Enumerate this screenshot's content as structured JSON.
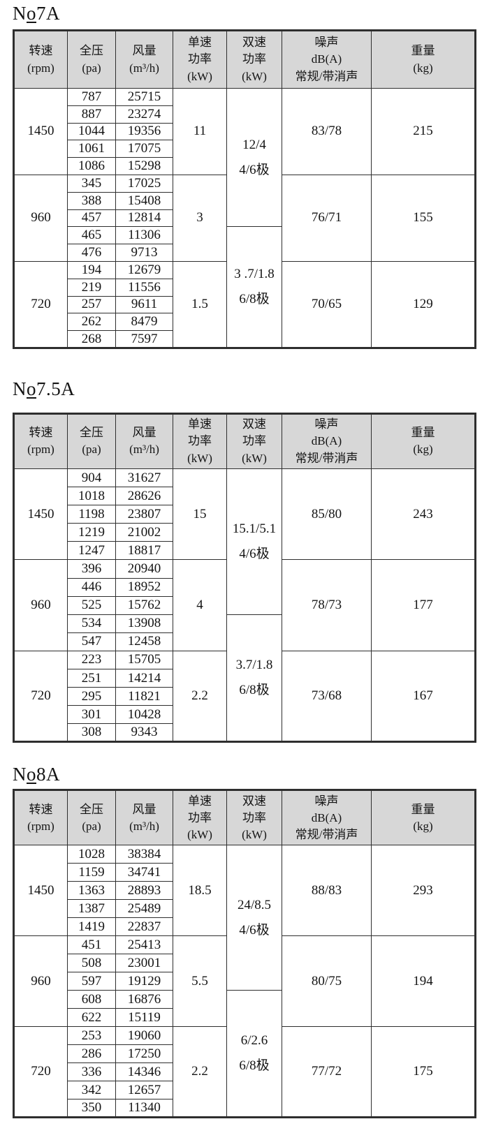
{
  "colors": {
    "page_bg": "#ffffff",
    "header_bg": "#d7d7d7",
    "band_bg": "#d7d7d7",
    "border": "#2e2e2e",
    "text": "#141414"
  },
  "header": {
    "columns": [
      {
        "name": "rpm",
        "lines": [
          "转速",
          "(rpm)"
        ]
      },
      {
        "name": "pressure",
        "lines": [
          "全压",
          "(pa)"
        ]
      },
      {
        "name": "airflow",
        "lines": [
          "风量",
          "(m³/h)"
        ]
      },
      {
        "name": "single-power",
        "lines": [
          "单速",
          "功率",
          "(kW)"
        ]
      },
      {
        "name": "dual-power",
        "lines": [
          "双速",
          "功率",
          "(kW)"
        ]
      },
      {
        "name": "noise",
        "lines": [
          "噪声",
          "dB(A)",
          "常规/带消声"
        ]
      },
      {
        "name": "weight",
        "lines": [
          "重量",
          "(kg)"
        ]
      }
    ]
  },
  "tables": [
    {
      "id": "no7a",
      "title_n": "N",
      "title_o": "o",
      "title_size": "7A",
      "dual_cells": [
        {
          "start": 0,
          "rowspan": 8,
          "lines": [
            "12/4",
            "4/6极"
          ]
        },
        {
          "start": 8,
          "rowspan": 7,
          "lines": [
            "3 .7/1.8",
            "6/8极"
          ]
        }
      ],
      "groups": [
        {
          "rpm": "1450",
          "shaded": false,
          "single_kw": "11",
          "noise": "83/78",
          "weight": "215",
          "rows": [
            [
              "787",
              "25715"
            ],
            [
              "887",
              "23274"
            ],
            [
              "1044",
              "19356"
            ],
            [
              "1061",
              "17075"
            ],
            [
              "1086",
              "15298"
            ]
          ]
        },
        {
          "rpm": "960",
          "shaded": true,
          "single_kw": "3",
          "noise": "76/71",
          "weight": "155",
          "rows": [
            [
              "345",
              "17025"
            ],
            [
              "388",
              "15408"
            ],
            [
              "457",
              "12814"
            ],
            [
              "465",
              "11306"
            ],
            [
              "476",
              "9713"
            ]
          ]
        },
        {
          "rpm": "720",
          "shaded": false,
          "single_kw": "1.5",
          "noise": "70/65",
          "weight": "129",
          "rows": [
            [
              "194",
              "12679"
            ],
            [
              "219",
              "11556"
            ],
            [
              "257",
              "9611"
            ],
            [
              "262",
              "8479"
            ],
            [
              "268",
              "7597"
            ]
          ]
        }
      ]
    },
    {
      "id": "no7.5a",
      "title_n": "N",
      "title_o": "o",
      "title_size": "7.5A",
      "dual_cells": [
        {
          "start": 0,
          "rowspan": 8,
          "lines": [
            "15.1/5.1",
            "4/6极"
          ]
        },
        {
          "start": 8,
          "rowspan": 7,
          "lines": [
            "3.7/1.8",
            "6/8极"
          ]
        }
      ],
      "groups": [
        {
          "rpm": "1450",
          "shaded": false,
          "single_kw": "15",
          "noise": "85/80",
          "weight": "243",
          "rows": [
            [
              "904",
              "31627"
            ],
            [
              "1018",
              "28626"
            ],
            [
              "1198",
              "23807"
            ],
            [
              "1219",
              "21002"
            ],
            [
              "1247",
              "18817"
            ]
          ]
        },
        {
          "rpm": "960",
          "shaded": true,
          "single_kw": "4",
          "noise": "78/73",
          "weight": "177",
          "rows": [
            [
              "396",
              "20940"
            ],
            [
              "446",
              "18952"
            ],
            [
              "525",
              "15762"
            ],
            [
              "534",
              "13908"
            ],
            [
              "547",
              "12458"
            ]
          ]
        },
        {
          "rpm": "720",
          "shaded": false,
          "single_kw": "2.2",
          "noise": "73/68",
          "weight": "167",
          "rows": [
            [
              "223",
              "15705"
            ],
            [
              "251",
              "14214"
            ],
            [
              "295",
              "11821"
            ],
            [
              "301",
              "10428"
            ],
            [
              "308",
              "9343"
            ]
          ]
        }
      ]
    },
    {
      "id": "no8a",
      "title_n": "N",
      "title_o": "o",
      "title_size": "8A",
      "dual_cells": [
        {
          "start": 0,
          "rowspan": 8,
          "lines": [
            "24/8.5",
            "4/6极"
          ]
        },
        {
          "start": 8,
          "rowspan": 7,
          "lines": [
            "6/2.6",
            "6/8极"
          ]
        }
      ],
      "groups": [
        {
          "rpm": "1450",
          "shaded": false,
          "single_kw": "18.5",
          "noise": "88/83",
          "weight": "293",
          "rows": [
            [
              "1028",
              "38384"
            ],
            [
              "1159",
              "34741"
            ],
            [
              "1363",
              "28893"
            ],
            [
              "1387",
              "25489"
            ],
            [
              "1419",
              "22837"
            ]
          ]
        },
        {
          "rpm": "960",
          "shaded": true,
          "single_kw": "5.5",
          "noise": "80/75",
          "weight": "194",
          "rows": [
            [
              "451",
              "25413"
            ],
            [
              "508",
              "23001"
            ],
            [
              "597",
              "19129"
            ],
            [
              "608",
              "16876"
            ],
            [
              "622",
              "15119"
            ]
          ]
        },
        {
          "rpm": "720",
          "shaded": false,
          "single_kw": "2.2",
          "noise": "77/72",
          "weight": "175",
          "rows": [
            [
              "253",
              "19060"
            ],
            [
              "286",
              "17250"
            ],
            [
              "336",
              "14346"
            ],
            [
              "342",
              "12657"
            ],
            [
              "350",
              "11340"
            ]
          ]
        }
      ]
    }
  ]
}
